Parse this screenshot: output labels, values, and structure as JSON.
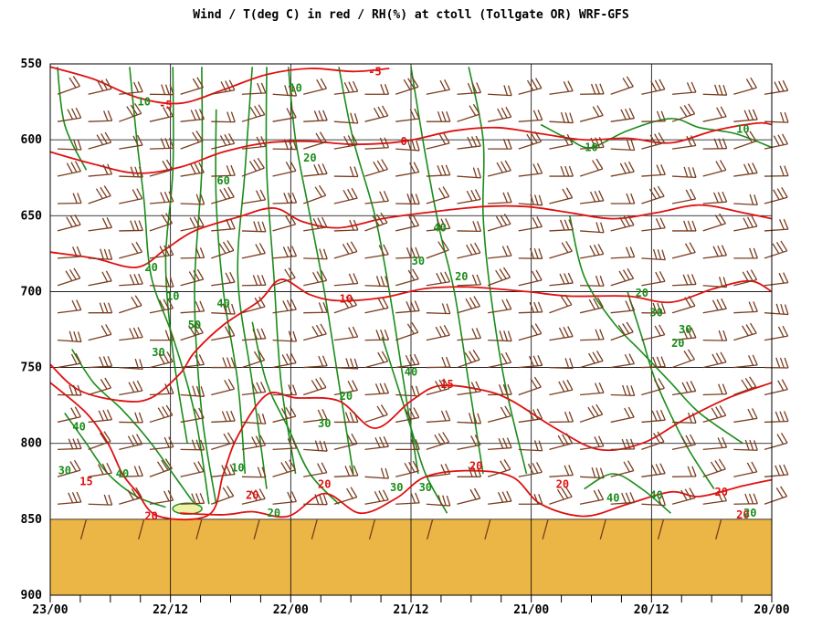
{
  "chart_data": {
    "type": "line",
    "title": "Wind / T(deg C) in red / RH(%) at ctoll (Tollgate OR)  WRF-GFS",
    "x_ticks": [
      "23/00",
      "22/12",
      "22/00",
      "21/12",
      "21/00",
      "20/12",
      "20/00"
    ],
    "y_ticks": [
      550,
      600,
      650,
      700,
      750,
      800,
      850,
      900
    ],
    "ylim": [
      550,
      900
    ],
    "y_axis": "pressure (hPa), inverted",
    "ground_pressure": 850,
    "grid": true,
    "colors": {
      "temperature": "#e01010",
      "rh": "#1a8c1a",
      "wind": "#7a3d1f",
      "terrain": "#ebb645",
      "grid": "#000000"
    },
    "series": [
      {
        "name": "T (deg C)",
        "contours": [
          {
            "value": -5,
            "labels": [
              [
                0.16,
                577
              ],
              [
                0.45,
                555
              ]
            ]
          },
          {
            "value": 0,
            "labels": [
              [
                0.49,
                601
              ]
            ]
          },
          {
            "value": 10,
            "labels": [
              [
                0.41,
                705
              ]
            ]
          },
          {
            "value": 15,
            "labels": [
              [
                0.55,
                761
              ]
            ],
            "extra_labels": [
              [
                0.05,
                825
              ]
            ]
          },
          {
            "value": 20,
            "labels": [
              [
                0.28,
                834
              ],
              [
                0.38,
                827
              ],
              [
                0.59,
                815
              ],
              [
                0.71,
                827
              ],
              [
                0.93,
                832
              ],
              [
                0.96,
                847
              ],
              [
                0.14,
                848
              ]
            ]
          }
        ]
      },
      {
        "name": "RH (%)",
        "contours": [
          {
            "value": 10,
            "labels": [
              [
                0.13,
                575
              ],
              [
                0.34,
                566
              ],
              [
                0.75,
                605
              ],
              [
                0.96,
                593
              ],
              [
                0.17,
                703
              ],
              [
                0.26,
                816
              ]
            ]
          },
          {
            "value": 20,
            "labels": [
              [
                0.14,
                684
              ],
              [
                0.36,
                612
              ],
              [
                0.57,
                690
              ],
              [
                0.41,
                769
              ],
              [
                0.82,
                701
              ],
              [
                0.87,
                734
              ],
              [
                0.31,
                846
              ],
              [
                0.97,
                846
              ]
            ]
          },
          {
            "value": 30,
            "labels": [
              [
                0.15,
                740
              ],
              [
                0.51,
                680
              ],
              [
                0.84,
                714
              ],
              [
                0.88,
                725
              ],
              [
                0.38,
                787
              ],
              [
                0.48,
                829
              ],
              [
                0.52,
                829
              ],
              [
                0.02,
                818
              ]
            ]
          },
          {
            "value": 40,
            "labels": [
              [
                0.24,
                708
              ],
              [
                0.54,
                658
              ],
              [
                0.5,
                753
              ],
              [
                0.78,
                836
              ],
              [
                0.84,
                834
              ],
              [
                0.04,
                789
              ],
              [
                0.1,
                820
              ]
            ]
          },
          {
            "value": 50,
            "labels": [
              [
                0.2,
                722
              ]
            ]
          },
          {
            "value": 60,
            "labels": [
              [
                0.24,
                627
              ]
            ]
          }
        ]
      }
    ]
  }
}
